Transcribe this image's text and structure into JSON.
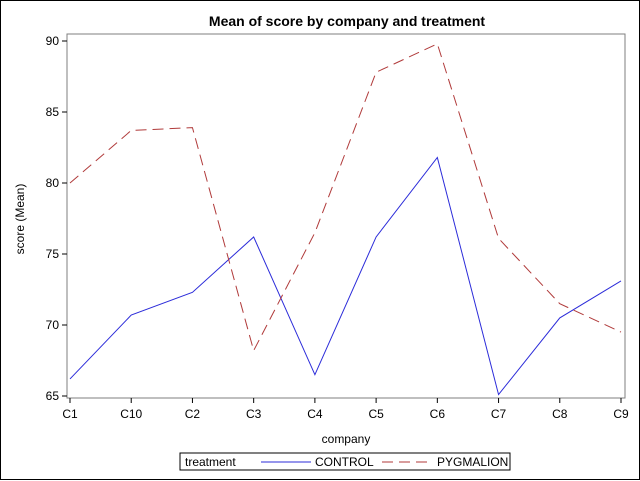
{
  "chart_data": {
    "type": "line",
    "title": "Mean of score by company and treatment",
    "xlabel": "company",
    "ylabel": "score (Mean)",
    "categories": [
      "C1",
      "C10",
      "C2",
      "C3",
      "C4",
      "C5",
      "C6",
      "C7",
      "C8",
      "C9"
    ],
    "ylim": [
      65,
      90
    ],
    "yticks": [
      65,
      70,
      75,
      80,
      85,
      90
    ],
    "grid": false,
    "legend_position": "bottom",
    "legend_title": "treatment",
    "series": [
      {
        "name": "CONTROL",
        "color": "#2b2bd9",
        "dash": "solid",
        "values": [
          66.2,
          70.7,
          72.3,
          76.2,
          66.5,
          76.2,
          81.8,
          65.1,
          70.5,
          73.1
        ]
      },
      {
        "name": "PYGMALION",
        "color": "#b03a3a",
        "dash": "dashed",
        "values": [
          80.0,
          83.7,
          83.9,
          68.2,
          76.5,
          87.8,
          89.8,
          76.1,
          71.5,
          69.5
        ]
      }
    ]
  }
}
